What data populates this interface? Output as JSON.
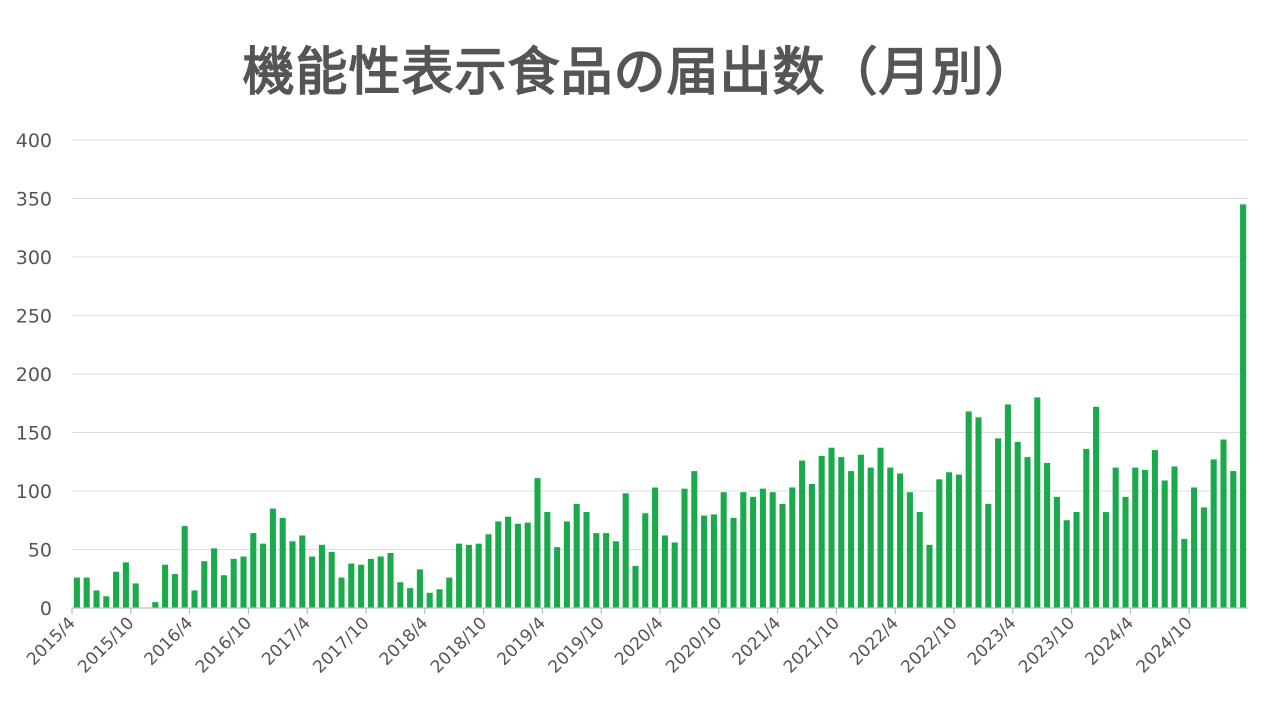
{
  "title": "機能性表示食品の届出数（月別）",
  "colors": {
    "bar": "#1aaa4b",
    "grid": "#dddddd",
    "text": "#555555"
  },
  "chart_data": {
    "type": "bar",
    "title": "機能性表示食品の届出数（月別）",
    "xlabel": "",
    "ylabel": "",
    "ylim": [
      0,
      400
    ],
    "yticks": [
      0,
      50,
      100,
      150,
      200,
      250,
      300,
      350,
      400
    ],
    "grid": true,
    "legend": "none",
    "start": "2015/4",
    "x_tick_labels": [
      "2015/4",
      "2015/10",
      "2016/4",
      "2016/10",
      "2017/4",
      "2017/10",
      "2018/4",
      "2018/10",
      "2019/4",
      "2019/10",
      "2020/4",
      "2020/10",
      "2021/4",
      "2021/10",
      "2022/4",
      "2022/10",
      "2023/4",
      "2023/10",
      "2024/4",
      "2024/10"
    ],
    "categories": [
      "2015/4",
      "2015/5",
      "2015/6",
      "2015/7",
      "2015/8",
      "2015/9",
      "2015/10",
      "2015/11",
      "2015/12",
      "2016/1",
      "2016/2",
      "2016/3",
      "2016/4",
      "2016/5",
      "2016/6",
      "2016/7",
      "2016/8",
      "2016/9",
      "2016/10",
      "2016/11",
      "2016/12",
      "2017/1",
      "2017/2",
      "2017/3",
      "2017/4",
      "2017/5",
      "2017/6",
      "2017/7",
      "2017/8",
      "2017/9",
      "2017/10",
      "2017/11",
      "2017/12",
      "2018/1",
      "2018/2",
      "2018/3",
      "2018/4",
      "2018/5",
      "2018/6",
      "2018/7",
      "2018/8",
      "2018/9",
      "2018/10",
      "2018/11",
      "2018/12",
      "2019/1",
      "2019/2",
      "2019/3",
      "2019/4",
      "2019/5",
      "2019/6",
      "2019/7",
      "2019/8",
      "2019/9",
      "2019/10",
      "2019/11",
      "2019/12",
      "2020/1",
      "2020/2",
      "2020/3",
      "2020/4",
      "2020/5",
      "2020/6",
      "2020/7",
      "2020/8",
      "2020/9",
      "2020/10",
      "2020/11",
      "2020/12",
      "2021/1",
      "2021/2",
      "2021/3",
      "2021/4",
      "2021/5",
      "2021/6",
      "2021/7",
      "2021/8",
      "2021/9",
      "2021/10",
      "2021/11",
      "2021/12",
      "2022/1",
      "2022/2",
      "2022/3",
      "2022/4",
      "2022/5",
      "2022/6",
      "2022/7",
      "2022/8",
      "2022/9",
      "2022/10",
      "2022/11",
      "2022/12",
      "2023/1",
      "2023/2",
      "2023/3",
      "2023/4",
      "2023/5",
      "2023/6",
      "2023/7",
      "2023/8",
      "2023/9",
      "2023/10",
      "2023/11",
      "2023/12",
      "2024/1",
      "2024/2",
      "2024/3",
      "2024/4",
      "2024/5",
      "2024/6",
      "2024/7",
      "2024/8",
      "2024/9",
      "2024/10",
      "2024/11",
      "2024/12",
      "2025/1",
      "2025/2",
      "2025/3"
    ],
    "values": [
      26,
      26,
      15,
      10,
      31,
      39,
      21,
      0,
      5,
      37,
      29,
      70,
      15,
      40,
      51,
      28,
      42,
      44,
      64,
      55,
      85,
      77,
      57,
      62,
      44,
      54,
      48,
      26,
      38,
      37,
      42,
      44,
      47,
      22,
      17,
      33,
      13,
      16,
      26,
      55,
      54,
      55,
      63,
      74,
      78,
      72,
      73,
      111,
      82,
      52,
      74,
      89,
      82,
      64,
      64,
      57,
      98,
      36,
      81,
      103,
      62,
      56,
      102,
      117,
      79,
      80,
      99,
      77,
      99,
      95,
      102,
      99,
      89,
      103,
      126,
      106,
      130,
      137,
      129,
      117,
      131,
      120,
      137,
      120,
      115,
      99,
      82,
      54,
      110,
      116,
      114,
      168,
      163,
      89,
      145,
      174,
      142,
      129,
      180,
      124,
      95,
      75,
      82,
      136,
      172,
      82,
      120,
      95,
      120,
      118,
      135,
      109,
      121,
      59,
      103,
      86,
      127,
      144,
      117,
      345
    ]
  }
}
